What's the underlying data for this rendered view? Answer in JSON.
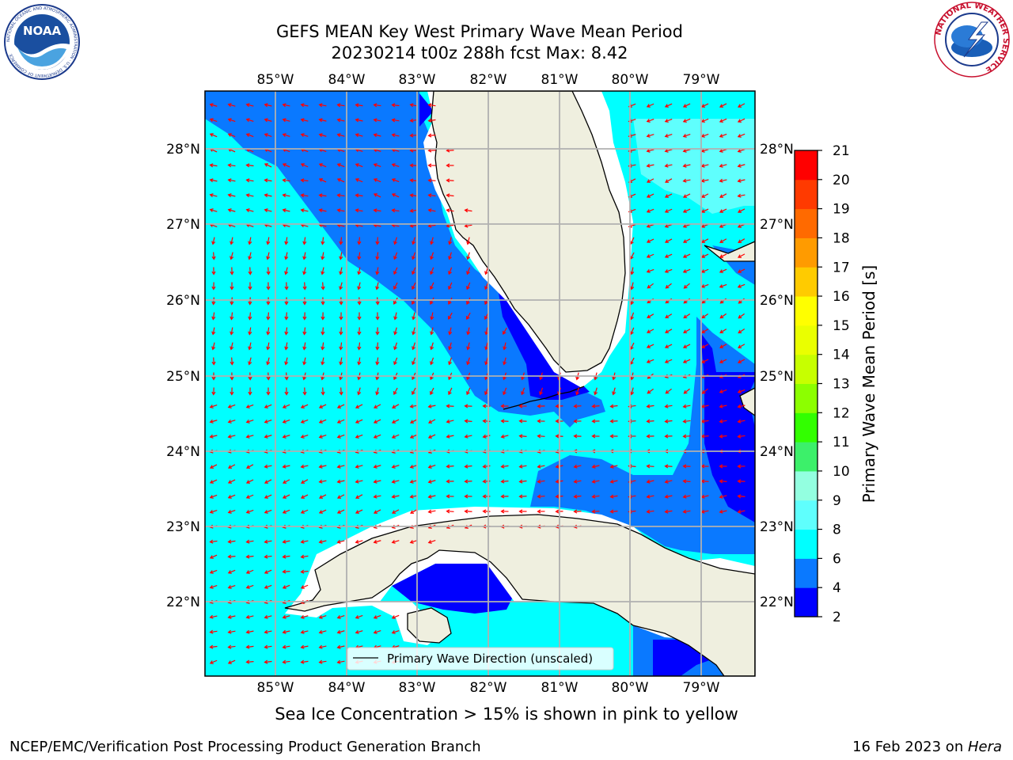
{
  "title_line1": "GEFS MEAN Key West Primary Wave Mean Period",
  "title_line2": "20230214 t00z 288h fcst   Max: 8.42",
  "logos": {
    "noaa_text": "NOAA",
    "noaa_ring": "NATIONAL OCEANIC AND ATMOSPHERIC ADMINISTRATION · U.S. DEPARTMENT OF COMMERCE",
    "nws_ring": "NATIONAL WEATHER SERVICE"
  },
  "map": {
    "lon_labels": [
      "85°W",
      "84°W",
      "83°W",
      "82°W",
      "81°W",
      "80°W",
      "79°W"
    ],
    "lat_labels": [
      "28°N",
      "27°N",
      "26°N",
      "25°N",
      "24°N",
      "23°N",
      "22°N"
    ],
    "legend_label": "Primary Wave Direction (unscaled)"
  },
  "colorbar": {
    "label": "Primary Wave Mean Period [s]",
    "ticks": [
      "2",
      "4",
      "6",
      "8",
      "9",
      "10",
      "11",
      "12",
      "13",
      "14",
      "15",
      "16",
      "17",
      "18",
      "19",
      "20",
      "21"
    ],
    "colors": [
      "#0000ff",
      "#0a79ff",
      "#00ffff",
      "#5ffffd",
      "#93ffe0",
      "#3cf06a",
      "#32ff00",
      "#8cff00",
      "#c7ff00",
      "#eaff00",
      "#ffff00",
      "#ffcb00",
      "#ff9b00",
      "#ff6a00",
      "#ff3a00",
      "#ff0000"
    ]
  },
  "caption": "Sea Ice Concentration > 15% is shown in pink to yellow",
  "footer_left": "NCEP/EMC/Verification Post Processing Product Generation Branch",
  "footer_right_date": "16 Feb 2023 on ",
  "footer_right_host": "Hera"
}
